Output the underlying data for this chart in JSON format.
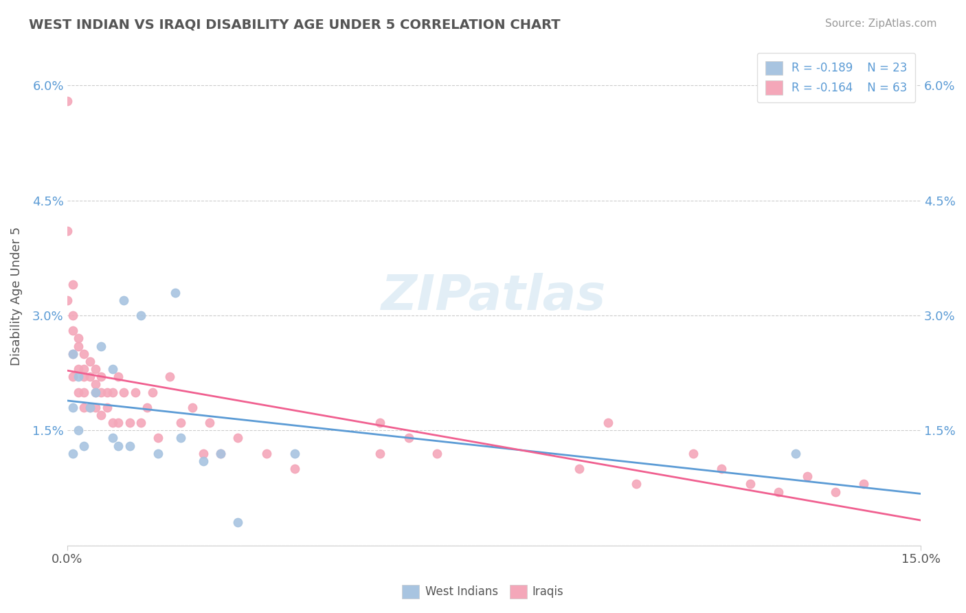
{
  "title": "WEST INDIAN VS IRAQI DISABILITY AGE UNDER 5 CORRELATION CHART",
  "source": "Source: ZipAtlas.com",
  "xlabel": "",
  "ylabel": "Disability Age Under 5",
  "xlim": [
    0.0,
    0.15
  ],
  "ylim": [
    0.0,
    0.065
  ],
  "xticks": [
    0.0,
    0.15
  ],
  "xticklabels": [
    "0.0%",
    "15.0%"
  ],
  "yticks": [
    0.0,
    0.015,
    0.03,
    0.045,
    0.06
  ],
  "yticklabels": [
    "",
    "1.5%",
    "3.0%",
    "4.5%",
    "6.0%"
  ],
  "legend_r_west": "R = -0.189",
  "legend_n_west": "N = 23",
  "legend_r_iraqi": "R = -0.164",
  "legend_n_iraqi": "N = 63",
  "west_indian_color": "#a8c4e0",
  "iraqi_color": "#f4a7b9",
  "west_indian_line_color": "#5b9bd5",
  "iraqi_line_color": "#f06090",
  "watermark": "ZIPatlas",
  "background_color": "#ffffff",
  "west_indians_x": [
    0.001,
    0.001,
    0.001,
    0.002,
    0.002,
    0.003,
    0.004,
    0.005,
    0.006,
    0.008,
    0.008,
    0.009,
    0.01,
    0.011,
    0.013,
    0.016,
    0.019,
    0.02,
    0.024,
    0.027,
    0.03,
    0.04,
    0.128
  ],
  "west_indians_y": [
    0.025,
    0.018,
    0.012,
    0.022,
    0.015,
    0.013,
    0.018,
    0.02,
    0.026,
    0.023,
    0.014,
    0.013,
    0.032,
    0.013,
    0.03,
    0.012,
    0.033,
    0.014,
    0.011,
    0.012,
    0.003,
    0.012,
    0.012
  ],
  "iraqis_x": [
    0.0,
    0.0,
    0.0,
    0.001,
    0.001,
    0.001,
    0.001,
    0.001,
    0.002,
    0.002,
    0.002,
    0.002,
    0.003,
    0.003,
    0.003,
    0.003,
    0.003,
    0.004,
    0.004,
    0.004,
    0.005,
    0.005,
    0.005,
    0.005,
    0.006,
    0.006,
    0.006,
    0.007,
    0.007,
    0.008,
    0.008,
    0.009,
    0.009,
    0.01,
    0.011,
    0.012,
    0.013,
    0.014,
    0.015,
    0.016,
    0.018,
    0.02,
    0.022,
    0.024,
    0.025,
    0.027,
    0.03,
    0.035,
    0.04,
    0.055,
    0.055,
    0.06,
    0.065,
    0.09,
    0.095,
    0.1,
    0.11,
    0.115,
    0.12,
    0.125,
    0.13,
    0.135,
    0.14
  ],
  "iraqis_y": [
    0.058,
    0.041,
    0.032,
    0.034,
    0.03,
    0.028,
    0.025,
    0.022,
    0.027,
    0.026,
    0.023,
    0.02,
    0.025,
    0.023,
    0.022,
    0.02,
    0.018,
    0.024,
    0.022,
    0.018,
    0.023,
    0.021,
    0.02,
    0.018,
    0.022,
    0.02,
    0.017,
    0.02,
    0.018,
    0.02,
    0.016,
    0.022,
    0.016,
    0.02,
    0.016,
    0.02,
    0.016,
    0.018,
    0.02,
    0.014,
    0.022,
    0.016,
    0.018,
    0.012,
    0.016,
    0.012,
    0.014,
    0.012,
    0.01,
    0.016,
    0.012,
    0.014,
    0.012,
    0.01,
    0.016,
    0.008,
    0.012,
    0.01,
    0.008,
    0.007,
    0.009,
    0.007,
    0.008
  ]
}
